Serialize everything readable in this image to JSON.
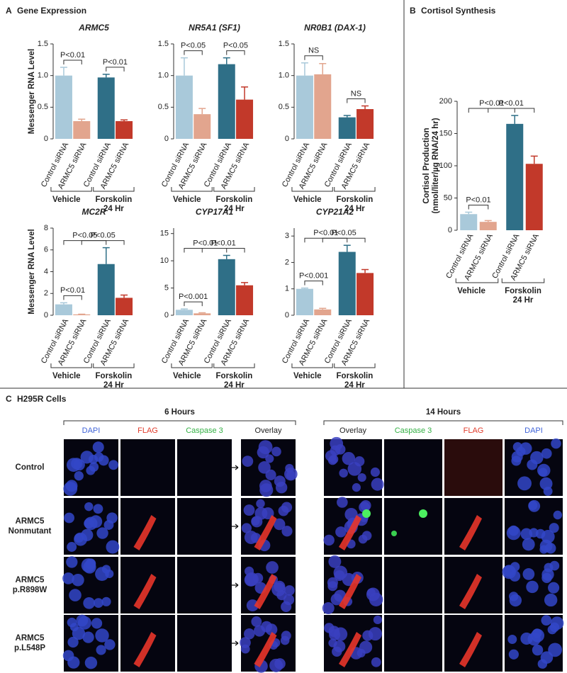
{
  "panels": [
    {
      "letter": "A",
      "title": "Gene Expression"
    },
    {
      "letter": "B",
      "title": "Cortisol Synthesis"
    },
    {
      "letter": "C",
      "title": "H295R Cells"
    }
  ],
  "chart_data": [
    {
      "type": "bar",
      "title": "ARMC5",
      "y_label": [
        "Messenger RNA Level"
      ],
      "categories": [
        "Control siRNA",
        "ARMC5 siRNA",
        "Control siRNA",
        "ARMC5 siRNA"
      ],
      "values": [
        1.0,
        0.28,
        0.97,
        0.28
      ],
      "errors": [
        0.13,
        0.03,
        0.05,
        0.02
      ],
      "colors": [
        "#a9c9da",
        "#e2a58e",
        "#2f6f87",
        "#c2392a"
      ],
      "groups": [
        {
          "label": [
            "Vehicle"
          ]
        },
        {
          "label": [
            "Forskolin",
            "24 Hr"
          ]
        }
      ],
      "ylim": [
        0,
        1.5
      ],
      "yticks": [
        0,
        0.5,
        {
          "value": 1,
          "label": "1.0"
        },
        1.5
      ],
      "annotations": [
        {
          "text": "P<0.01",
          "between": [
            0,
            1
          ]
        },
        {
          "text": "P<0.01",
          "between": [
            2,
            3
          ]
        }
      ]
    },
    {
      "type": "bar",
      "title": "NR5A1 (SF1)",
      "categories": [
        "Control siRNA",
        "ARMC5 siRNA",
        "Control siRNA",
        "ARMC5 siRNA"
      ],
      "values": [
        1.0,
        0.39,
        1.18,
        0.62
      ],
      "errors": [
        0.28,
        0.09,
        0.1,
        0.2
      ],
      "colors": [
        "#a9c9da",
        "#e2a58e",
        "#2f6f87",
        "#c2392a"
      ],
      "groups": [
        {
          "label": [
            "Vehicle"
          ]
        },
        {
          "label": [
            "Forskolin",
            "24 Hr"
          ]
        }
      ],
      "ylim": [
        0,
        1.5
      ],
      "yticks": [
        0,
        0.5,
        {
          "value": 1,
          "label": "1.0"
        },
        1.5
      ],
      "annotations": [
        {
          "text": "P<0.05",
          "between": [
            0,
            1
          ]
        },
        {
          "text": "P<0.05",
          "between": [
            2,
            3
          ]
        }
      ]
    },
    {
      "type": "bar",
      "title": "NR0B1 (DAX-1)",
      "categories": [
        "Control siRNA",
        "ARMC5 siRNA",
        "Control siRNA",
        "ARMC5 siRNA"
      ],
      "values": [
        1.0,
        1.02,
        0.34,
        0.47
      ],
      "errors": [
        0.2,
        0.17,
        0.03,
        0.05
      ],
      "colors": [
        "#a9c9da",
        "#e2a58e",
        "#2f6f87",
        "#c2392a"
      ],
      "groups": [
        {
          "label": [
            "Vehicle"
          ]
        },
        {
          "label": [
            "Forskolin",
            "24 Hr"
          ]
        }
      ],
      "ylim": [
        0,
        1.5
      ],
      "yticks": [
        0,
        0.5,
        {
          "value": 1,
          "label": "1.0"
        },
        1.5
      ],
      "annotations": [
        {
          "text": "NS",
          "between": [
            0,
            1
          ]
        },
        {
          "text": "NS",
          "between": [
            2,
            3
          ]
        }
      ]
    },
    {
      "type": "bar",
      "title": "MC2R",
      "y_label": [
        "Messenger RNA Level"
      ],
      "categories": [
        "Control siRNA",
        "ARMC5 siRNA",
        "Control siRNA",
        "ARMC5 siRNA"
      ],
      "values": [
        1.0,
        0.08,
        4.7,
        1.6
      ],
      "errors": [
        0.15,
        0.02,
        1.5,
        0.25
      ],
      "colors": [
        "#a9c9da",
        "#e2a58e",
        "#2f6f87",
        "#c2392a"
      ],
      "groups": [
        {
          "label": [
            "Vehicle"
          ]
        },
        {
          "label": [
            "Forskolin",
            "24 Hr"
          ]
        }
      ],
      "ylim": [
        0,
        8
      ],
      "yticks": [
        0,
        2,
        4,
        6,
        8
      ],
      "annotations": [
        {
          "text": "P<0.01",
          "between": [
            0,
            1
          ]
        },
        {
          "text": "P<0.05",
          "between": [
            0,
            2
          ]
        },
        {
          "text": "P<0.05",
          "between": [
            1,
            3
          ]
        }
      ]
    },
    {
      "type": "bar",
      "title": "CYP17A1",
      "categories": [
        "Control siRNA",
        "ARMC5 siRNA",
        "Control siRNA",
        "ARMC5 siRNA"
      ],
      "values": [
        1.0,
        0.35,
        10.3,
        5.5
      ],
      "errors": [
        0.15,
        0.1,
        0.7,
        0.5
      ],
      "colors": [
        "#a9c9da",
        "#e2a58e",
        "#2f6f87",
        "#c2392a"
      ],
      "groups": [
        {
          "label": [
            "Vehicle"
          ]
        },
        {
          "label": [
            "Forskolin",
            "24 Hr"
          ]
        }
      ],
      "ylim": [
        0,
        16
      ],
      "yticks": [
        0,
        5,
        10,
        15
      ],
      "annotations": [
        {
          "text": "P<0.001",
          "between": [
            0,
            1
          ]
        },
        {
          "text": "P<0.01",
          "between": [
            0,
            2
          ]
        },
        {
          "text": "P<0.01",
          "between": [
            1,
            3
          ]
        }
      ]
    },
    {
      "type": "bar",
      "title": "CYP21A2",
      "categories": [
        "Control siRNA",
        "ARMC5 siRNA",
        "Control siRNA",
        "ARMC5 siRNA"
      ],
      "values": [
        1.0,
        0.22,
        2.4,
        1.6
      ],
      "errors": [
        0.03,
        0.04,
        0.25,
        0.13
      ],
      "colors": [
        "#a9c9da",
        "#e2a58e",
        "#2f6f87",
        "#c2392a"
      ],
      "groups": [
        {
          "label": [
            "Vehicle"
          ]
        },
        {
          "label": [
            "Forskolin",
            "24 Hr"
          ]
        }
      ],
      "ylim": [
        0,
        3.3
      ],
      "yticks": [
        0,
        1,
        2,
        3
      ],
      "annotations": [
        {
          "text": "P<0.001",
          "between": [
            0,
            1
          ]
        },
        {
          "text": "P<0.01",
          "between": [
            0,
            2
          ]
        },
        {
          "text": "P<0.05",
          "between": [
            1,
            3
          ]
        }
      ]
    },
    {
      "type": "bar",
      "y_label": [
        "Cortisol Production",
        "(nmol/liter/µg RNA/24 hr)"
      ],
      "categories": [
        "Control siRNA",
        "ARMC5 siRNA",
        "Control siRNA",
        "ARMC5 siRNA"
      ],
      "values": [
        25,
        13,
        165,
        103
      ],
      "errors": [
        3,
        2,
        13,
        12
      ],
      "colors": [
        "#a9c9da",
        "#e2a58e",
        "#2f6f87",
        "#c2392a"
      ],
      "groups": [
        {
          "label": [
            "Vehicle"
          ]
        },
        {
          "label": [
            "Forskolin",
            "24 Hr"
          ]
        }
      ],
      "ylim": [
        0,
        200
      ],
      "yticks": [
        0,
        50,
        100,
        150,
        200
      ],
      "annotations": [
        {
          "text": "P<0.01",
          "between": [
            0,
            1
          ]
        },
        {
          "text": "P<0.01",
          "between": [
            0,
            2
          ]
        },
        {
          "text": "P<0.01",
          "between": [
            1,
            3
          ]
        }
      ]
    }
  ],
  "panel_c": {
    "time_points": [
      {
        "label": "6 Hours",
        "columns": [
          {
            "label": "DAPI",
            "color": "#3f63d8"
          },
          {
            "label": "FLAG",
            "color": "#e03a2a"
          },
          {
            "label": "Caspase 3",
            "color": "#33b044"
          },
          {
            "label": "Overlay",
            "color": "#222222"
          }
        ]
      },
      {
        "label": "14 Hours",
        "columns": [
          {
            "label": "Overlay",
            "color": "#222222"
          },
          {
            "label": "Caspase 3",
            "color": "#33b044"
          },
          {
            "label": "FLAG",
            "color": "#e03a2a"
          },
          {
            "label": "DAPI",
            "color": "#3f63d8"
          }
        ]
      }
    ],
    "rows": [
      {
        "label": [
          "Control"
        ]
      },
      {
        "label": [
          "ARMC5",
          "Nonmutant"
        ]
      },
      {
        "label": [
          "ARMC5",
          "p.R898W"
        ]
      },
      {
        "label": [
          "ARMC5",
          "p.L548P"
        ]
      }
    ]
  }
}
